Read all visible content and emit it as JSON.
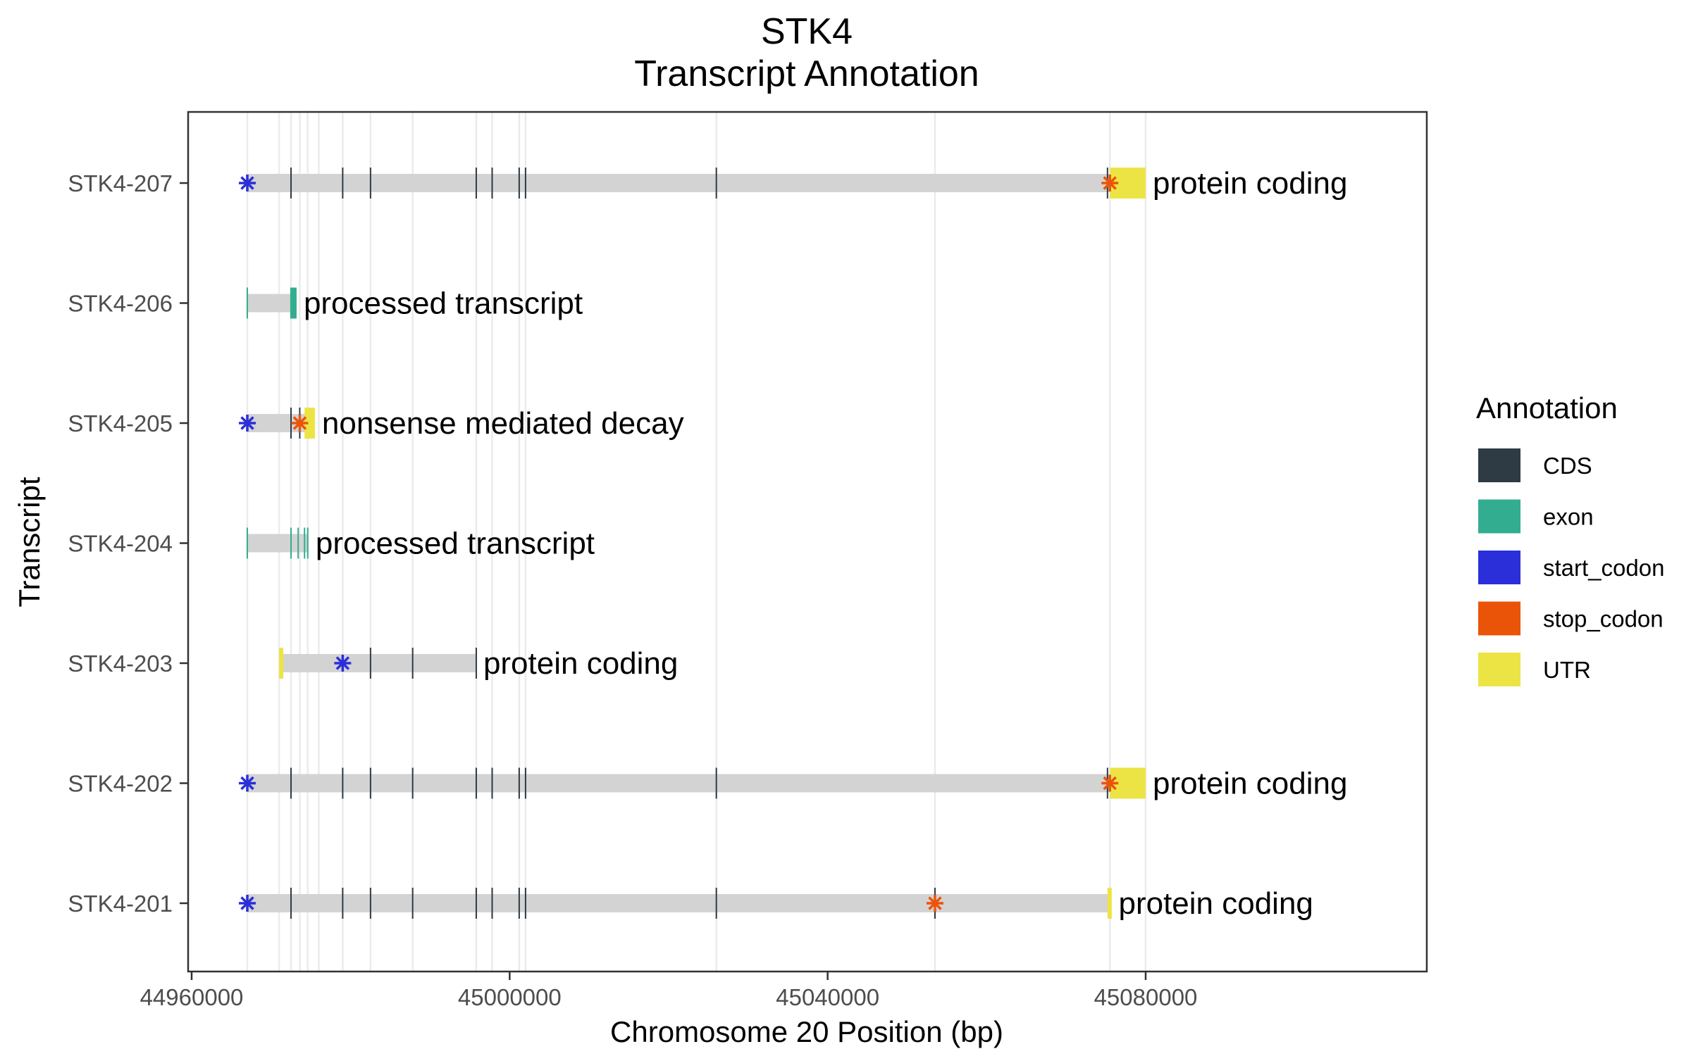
{
  "chart_data": {
    "type": "transcript-annotation",
    "title": "STK4",
    "subtitle": "Transcript Annotation",
    "xlabel": "Chromosome 20 Position (bp)",
    "ylabel": "Transcript",
    "xlim": [
      44960000,
      45100000
    ],
    "xticks": [
      44960000,
      45000000,
      45040000,
      45080000
    ],
    "xtick_labels": [
      "44960000",
      "45000000",
      "45040000",
      "45080000"
    ],
    "grid": true,
    "legend": {
      "title": "Annotation",
      "position": "right",
      "items": [
        {
          "label": "CDS",
          "color": "#2e3b45"
        },
        {
          "label": "exon",
          "color": "#33ad8f"
        },
        {
          "label": "start_codon",
          "color": "#2a2fd9"
        },
        {
          "label": "stop_codon",
          "color": "#ea5409"
        },
        {
          "label": "UTR",
          "color": "#ece445"
        }
      ]
    },
    "transcripts": [
      {
        "name": "STK4-207",
        "biotype": "protein coding",
        "start": 44967000,
        "end": 45080000,
        "exon_marks": [
          44972500,
          44979000,
          44982500,
          44995800,
          44997800,
          45001200,
          45002000,
          45026000,
          45075200
        ],
        "exon_color": "CDS",
        "utr": [
          [
            45075500,
            45080000
          ]
        ],
        "start_codon": 44967000,
        "stop_codon": 45075500
      },
      {
        "name": "STK4-206",
        "biotype": "processed transcript",
        "start": 44967000,
        "end": 44973200,
        "exon_marks": [
          44967000
        ],
        "exon_color": "exon",
        "exon_blocks": [
          [
            44972400,
            44973200
          ]
        ],
        "utr": [],
        "start_codon": null,
        "stop_codon": null
      },
      {
        "name": "STK4-205",
        "biotype": "nonsense mediated decay",
        "start": 44967000,
        "end": 44975500,
        "exon_marks": [
          44972500,
          44973600
        ],
        "exon_color": "CDS",
        "utr": [
          [
            44974200,
            44975500
          ]
        ],
        "start_codon": 44967000,
        "stop_codon": 44973600
      },
      {
        "name": "STK4-204",
        "biotype": "processed transcript",
        "start": 44967000,
        "end": 44974700,
        "exon_marks": [
          44967000,
          44972500,
          44973400,
          44974200,
          44974600
        ],
        "exon_color": "exon",
        "utr": [],
        "start_codon": null,
        "stop_codon": null
      },
      {
        "name": "STK4-203",
        "biotype": "protein coding",
        "start": 44971000,
        "end": 44995800,
        "exon_marks": [
          44982500,
          44987800,
          44995800
        ],
        "exon_color": "CDS",
        "utr": [
          [
            44971000,
            44971300
          ]
        ],
        "start_codon": 44979000,
        "stop_codon": null
      },
      {
        "name": "STK4-202",
        "biotype": "protein coding",
        "start": 44967000,
        "end": 45080000,
        "exon_marks": [
          44972500,
          44979000,
          44982500,
          44987800,
          44995800,
          44997800,
          45001200,
          45002000,
          45026000,
          45075200
        ],
        "exon_color": "CDS",
        "utr": [
          [
            45075500,
            45080000
          ]
        ],
        "start_codon": 44967000,
        "stop_codon": 45075500
      },
      {
        "name": "STK4-201",
        "biotype": "protein coding",
        "start": 44967000,
        "end": 45075700,
        "exon_marks": [
          44972500,
          44979000,
          44982500,
          44987800,
          44995800,
          44997800,
          45001200,
          45002000,
          45026000,
          45053500
        ],
        "exon_color": "CDS",
        "utr": [
          [
            45075200,
            45075700
          ]
        ],
        "start_codon": 44967000,
        "stop_codon": 45053500
      }
    ],
    "gridlines_x": [
      44967000,
      44971000,
      44972500,
      44973600,
      44974600,
      44976000,
      44979000,
      44982500,
      44987800,
      44995800,
      44997800,
      45001200,
      45002000,
      45026000,
      45053500,
      45075500,
      45080000
    ]
  }
}
